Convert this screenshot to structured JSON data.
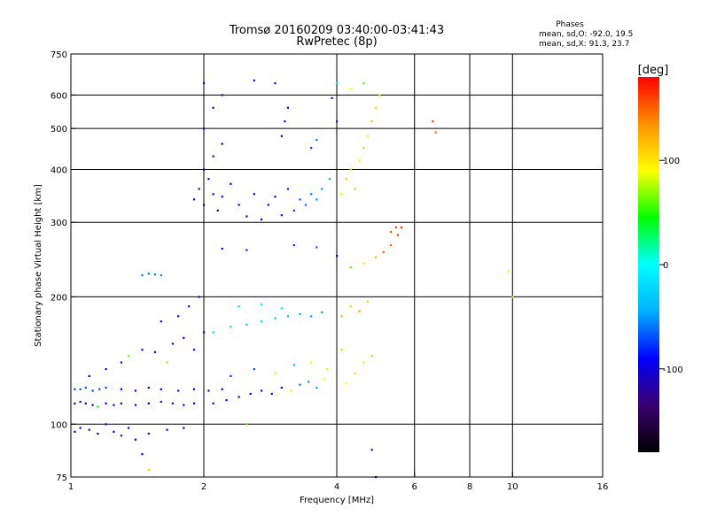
{
  "chart_data": {
    "type": "scatter",
    "title": "Tromsø 20160209 03:40:00-03:41:43",
    "subtitle": "RwPretec (8p)",
    "info": {
      "heading": "Phases",
      "line_o": "mean, sd,O: -92.0, 19.5",
      "line_x": "mean, sd,X:  91.3, 23.7"
    },
    "xlabel": "Frequency [MHz]",
    "ylabel": "Stationary phase Virtual Height [km]",
    "x_scale": "log",
    "y_scale": "log",
    "xlim": [
      1,
      16
    ],
    "ylim": [
      75,
      750
    ],
    "x_ticks": [
      1,
      2,
      4,
      6,
      8,
      10,
      16
    ],
    "x_tick_labels": [
      "1",
      "2",
      "4",
      "6",
      "8",
      "10",
      "16"
    ],
    "x_grid": [
      2,
      4,
      6,
      8,
      10
    ],
    "y_ticks": [
      75,
      100,
      200,
      300,
      400,
      500,
      600,
      750
    ],
    "y_tick_labels": [
      "75",
      "100",
      "200",
      "300",
      "400",
      "500",
      "600",
      "750"
    ],
    "y_grid": [
      100,
      200,
      300,
      400,
      500,
      600
    ],
    "grid": true,
    "colorbar": {
      "label": "[deg]",
      "range": [
        -180,
        180
      ],
      "ticks": [
        100,
        0,
        -100
      ],
      "tick_labels": [
        "100",
        "0",
        "-100"
      ],
      "colors": [
        "#000000",
        "#3a0070",
        "#0000ff",
        "#00b0ff",
        "#00ffff",
        "#00ff00",
        "#ffff00",
        "#ff9000",
        "#ff0000"
      ]
    },
    "series": [
      {
        "name": "",
        "type": "scatter",
        "color_encoding": "phase_deg",
        "points": [
          {
            "x": 1.02,
            "y": 96,
            "c": -110
          },
          {
            "x": 1.05,
            "y": 98,
            "c": -112
          },
          {
            "x": 1.1,
            "y": 97,
            "c": -108
          },
          {
            "x": 1.15,
            "y": 95,
            "c": -110
          },
          {
            "x": 1.2,
            "y": 100,
            "c": -105
          },
          {
            "x": 1.25,
            "y": 96,
            "c": -115
          },
          {
            "x": 1.3,
            "y": 94,
            "c": -110
          },
          {
            "x": 1.35,
            "y": 98,
            "c": -108
          },
          {
            "x": 1.4,
            "y": 92,
            "c": -112
          },
          {
            "x": 1.5,
            "y": 95,
            "c": -110
          },
          {
            "x": 1.65,
            "y": 97,
            "c": -100
          },
          {
            "x": 1.8,
            "y": 98,
            "c": -105
          },
          {
            "x": 1.02,
            "y": 112,
            "c": -100
          },
          {
            "x": 1.05,
            "y": 113,
            "c": -98
          },
          {
            "x": 1.08,
            "y": 112,
            "c": -104
          },
          {
            "x": 1.12,
            "y": 111,
            "c": -100
          },
          {
            "x": 1.15,
            "y": 110,
            "c": 40
          },
          {
            "x": 1.2,
            "y": 112,
            "c": -102
          },
          {
            "x": 1.25,
            "y": 111,
            "c": -98
          },
          {
            "x": 1.3,
            "y": 112,
            "c": -100
          },
          {
            "x": 1.4,
            "y": 111,
            "c": -96
          },
          {
            "x": 1.5,
            "y": 112,
            "c": -100
          },
          {
            "x": 1.6,
            "y": 113,
            "c": -98
          },
          {
            "x": 1.7,
            "y": 112,
            "c": -102
          },
          {
            "x": 1.8,
            "y": 111,
            "c": -100
          },
          {
            "x": 1.9,
            "y": 112,
            "c": -98
          },
          {
            "x": 1.02,
            "y": 121,
            "c": -70
          },
          {
            "x": 1.05,
            "y": 121,
            "c": -65
          },
          {
            "x": 1.08,
            "y": 122,
            "c": -68
          },
          {
            "x": 1.12,
            "y": 120,
            "c": -72
          },
          {
            "x": 1.16,
            "y": 121,
            "c": -66
          },
          {
            "x": 1.2,
            "y": 122,
            "c": -70
          },
          {
            "x": 1.3,
            "y": 121,
            "c": -90
          },
          {
            "x": 1.4,
            "y": 120,
            "c": -95
          },
          {
            "x": 1.5,
            "y": 122,
            "c": -92
          },
          {
            "x": 1.6,
            "y": 121,
            "c": -96
          },
          {
            "x": 1.75,
            "y": 120,
            "c": -94
          },
          {
            "x": 1.9,
            "y": 121,
            "c": -92
          },
          {
            "x": 2.05,
            "y": 120,
            "c": -95
          },
          {
            "x": 2.2,
            "y": 121,
            "c": -90
          },
          {
            "x": 1.1,
            "y": 130,
            "c": -100
          },
          {
            "x": 1.2,
            "y": 135,
            "c": -102
          },
          {
            "x": 1.3,
            "y": 140,
            "c": -98
          },
          {
            "x": 1.35,
            "y": 145,
            "c": 60
          },
          {
            "x": 1.45,
            "y": 150,
            "c": -100
          },
          {
            "x": 1.55,
            "y": 148,
            "c": -104
          },
          {
            "x": 1.65,
            "y": 140,
            "c": 70
          },
          {
            "x": 1.7,
            "y": 155,
            "c": -98
          },
          {
            "x": 1.8,
            "y": 160,
            "c": -100
          },
          {
            "x": 1.9,
            "y": 150,
            "c": -102
          },
          {
            "x": 2.0,
            "y": 165,
            "c": -96
          },
          {
            "x": 1.6,
            "y": 175,
            "c": -100
          },
          {
            "x": 1.75,
            "y": 180,
            "c": -98
          },
          {
            "x": 1.85,
            "y": 190,
            "c": -100
          },
          {
            "x": 1.95,
            "y": 200,
            "c": -102
          },
          {
            "x": 1.45,
            "y": 225,
            "c": -60
          },
          {
            "x": 1.5,
            "y": 227,
            "c": -62
          },
          {
            "x": 1.55,
            "y": 226,
            "c": -58
          },
          {
            "x": 1.6,
            "y": 225,
            "c": -60
          },
          {
            "x": 2.1,
            "y": 112,
            "c": -95
          },
          {
            "x": 2.25,
            "y": 114,
            "c": -92
          },
          {
            "x": 2.4,
            "y": 116,
            "c": -95
          },
          {
            "x": 2.55,
            "y": 118,
            "c": -90
          },
          {
            "x": 2.7,
            "y": 120,
            "c": -94
          },
          {
            "x": 2.85,
            "y": 118,
            "c": -92
          },
          {
            "x": 3.0,
            "y": 122,
            "c": -90
          },
          {
            "x": 3.15,
            "y": 120,
            "c": 80
          },
          {
            "x": 3.3,
            "y": 124,
            "c": -60
          },
          {
            "x": 3.45,
            "y": 126,
            "c": -55
          },
          {
            "x": 3.6,
            "y": 122,
            "c": -50
          },
          {
            "x": 3.75,
            "y": 128,
            "c": 90
          },
          {
            "x": 2.3,
            "y": 130,
            "c": -80
          },
          {
            "x": 2.6,
            "y": 135,
            "c": -70
          },
          {
            "x": 2.9,
            "y": 132,
            "c": 85
          },
          {
            "x": 3.2,
            "y": 138,
            "c": -40
          },
          {
            "x": 3.5,
            "y": 140,
            "c": 95
          },
          {
            "x": 3.8,
            "y": 135,
            "c": 100
          },
          {
            "x": 4.1,
            "y": 150,
            "c": 110
          },
          {
            "x": 4.2,
            "y": 125,
            "c": 95
          },
          {
            "x": 4.4,
            "y": 132,
            "c": 105
          },
          {
            "x": 4.6,
            "y": 140,
            "c": 100
          },
          {
            "x": 4.8,
            "y": 145,
            "c": 110
          },
          {
            "x": 2.1,
            "y": 165,
            "c": -30
          },
          {
            "x": 2.3,
            "y": 170,
            "c": -20
          },
          {
            "x": 2.5,
            "y": 172,
            "c": -25
          },
          {
            "x": 2.7,
            "y": 175,
            "c": -30
          },
          {
            "x": 2.9,
            "y": 178,
            "c": -35
          },
          {
            "x": 3.1,
            "y": 180,
            "c": -40
          },
          {
            "x": 3.3,
            "y": 182,
            "c": -45
          },
          {
            "x": 3.5,
            "y": 180,
            "c": -50
          },
          {
            "x": 3.7,
            "y": 184,
            "c": -48
          },
          {
            "x": 2.4,
            "y": 190,
            "c": -10
          },
          {
            "x": 2.7,
            "y": 192,
            "c": -15
          },
          {
            "x": 3.0,
            "y": 188,
            "c": -20
          },
          {
            "x": 4.1,
            "y": 180,
            "c": 120
          },
          {
            "x": 4.3,
            "y": 190,
            "c": 110
          },
          {
            "x": 4.5,
            "y": 185,
            "c": 130
          },
          {
            "x": 4.7,
            "y": 195,
            "c": 115
          },
          {
            "x": 2.2,
            "y": 260,
            "c": -90
          },
          {
            "x": 2.5,
            "y": 258,
            "c": -85
          },
          {
            "x": 3.2,
            "y": 265,
            "c": -80
          },
          {
            "x": 3.6,
            "y": 262,
            "c": -70
          },
          {
            "x": 4.0,
            "y": 250,
            "c": -90
          },
          {
            "x": 4.3,
            "y": 235,
            "c": 60
          },
          {
            "x": 4.6,
            "y": 240,
            "c": 100
          },
          {
            "x": 4.9,
            "y": 248,
            "c": 120
          },
          {
            "x": 5.1,
            "y": 255,
            "c": 150
          },
          {
            "x": 5.3,
            "y": 265,
            "c": 150
          },
          {
            "x": 5.5,
            "y": 280,
            "c": 160
          },
          {
            "x": 5.6,
            "y": 292,
            "c": 165
          },
          {
            "x": 5.45,
            "y": 292,
            "c": 160
          },
          {
            "x": 5.3,
            "y": 285,
            "c": 155
          },
          {
            "x": 1.9,
            "y": 340,
            "c": -110
          },
          {
            "x": 1.95,
            "y": 360,
            "c": -108
          },
          {
            "x": 2.0,
            "y": 330,
            "c": -112
          },
          {
            "x": 2.05,
            "y": 380,
            "c": -104
          },
          {
            "x": 2.1,
            "y": 350,
            "c": -110
          },
          {
            "x": 2.15,
            "y": 320,
            "c": -106
          },
          {
            "x": 2.2,
            "y": 345,
            "c": -108
          },
          {
            "x": 2.3,
            "y": 370,
            "c": -100
          },
          {
            "x": 2.4,
            "y": 330,
            "c": -110
          },
          {
            "x": 2.5,
            "y": 310,
            "c": -104
          },
          {
            "x": 2.6,
            "y": 350,
            "c": -102
          },
          {
            "x": 2.7,
            "y": 305,
            "c": -100
          },
          {
            "x": 2.8,
            "y": 330,
            "c": -95
          },
          {
            "x": 2.9,
            "y": 345,
            "c": -90
          },
          {
            "x": 3.0,
            "y": 312,
            "c": -85
          },
          {
            "x": 3.1,
            "y": 360,
            "c": -80
          },
          {
            "x": 3.2,
            "y": 320,
            "c": -75
          },
          {
            "x": 3.3,
            "y": 340,
            "c": -70
          },
          {
            "x": 3.4,
            "y": 330,
            "c": -65
          },
          {
            "x": 3.5,
            "y": 350,
            "c": -60
          },
          {
            "x": 3.6,
            "y": 340,
            "c": -55
          },
          {
            "x": 3.7,
            "y": 360,
            "c": -50
          },
          {
            "x": 3.85,
            "y": 380,
            "c": -40
          },
          {
            "x": 2.0,
            "y": 400,
            "c": -108
          },
          {
            "x": 2.1,
            "y": 430,
            "c": -110
          },
          {
            "x": 2.2,
            "y": 460,
            "c": -104
          },
          {
            "x": 2.0,
            "y": 500,
            "c": -112
          },
          {
            "x": 2.1,
            "y": 560,
            "c": -106
          },
          {
            "x": 2.0,
            "y": 640,
            "c": -110
          },
          {
            "x": 2.2,
            "y": 600,
            "c": -108
          },
          {
            "x": 2.6,
            "y": 650,
            "c": -100
          },
          {
            "x": 2.9,
            "y": 640,
            "c": -104
          },
          {
            "x": 3.0,
            "y": 480,
            "c": -100
          },
          {
            "x": 3.05,
            "y": 520,
            "c": -102
          },
          {
            "x": 3.1,
            "y": 560,
            "c": -96
          },
          {
            "x": 3.5,
            "y": 450,
            "c": -80
          },
          {
            "x": 3.6,
            "y": 470,
            "c": -60
          },
          {
            "x": 3.9,
            "y": 590,
            "c": -100
          },
          {
            "x": 4.0,
            "y": 520,
            "c": -80
          },
          {
            "x": 4.0,
            "y": 640,
            "c": -20
          },
          {
            "x": 4.1,
            "y": 350,
            "c": 100
          },
          {
            "x": 4.2,
            "y": 380,
            "c": 110
          },
          {
            "x": 4.3,
            "y": 400,
            "c": 105
          },
          {
            "x": 4.4,
            "y": 360,
            "c": 115
          },
          {
            "x": 4.5,
            "y": 420,
            "c": 95
          },
          {
            "x": 4.6,
            "y": 450,
            "c": 110
          },
          {
            "x": 4.7,
            "y": 480,
            "c": 100
          },
          {
            "x": 4.8,
            "y": 520,
            "c": 120
          },
          {
            "x": 4.9,
            "y": 560,
            "c": 110
          },
          {
            "x": 5.0,
            "y": 600,
            "c": 100
          },
          {
            "x": 4.3,
            "y": 620,
            "c": 90
          },
          {
            "x": 4.6,
            "y": 640,
            "c": 60
          },
          {
            "x": 6.6,
            "y": 520,
            "c": 160
          },
          {
            "x": 6.7,
            "y": 490,
            "c": 150
          },
          {
            "x": 4.8,
            "y": 87,
            "c": -100
          },
          {
            "x": 4.9,
            "y": 75,
            "c": -110
          },
          {
            "x": 10.0,
            "y": 200,
            "c": 100
          },
          {
            "x": 9.8,
            "y": 230,
            "c": 95
          },
          {
            "x": 1.5,
            "y": 78,
            "c": 110
          },
          {
            "x": 1.45,
            "y": 85,
            "c": -100
          },
          {
            "x": 2.5,
            "y": 100,
            "c": 60
          }
        ]
      }
    ]
  }
}
